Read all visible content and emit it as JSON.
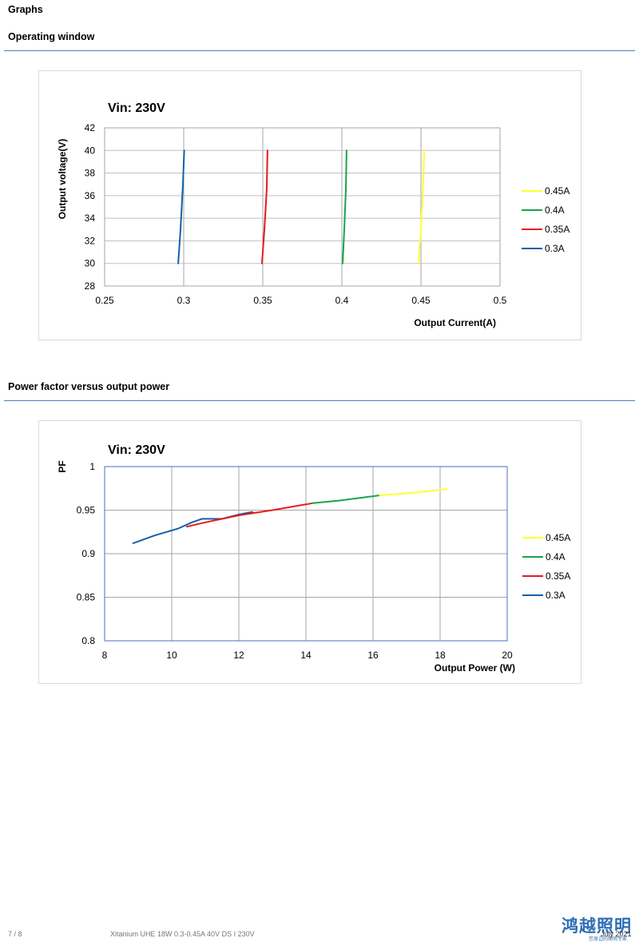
{
  "headings": {
    "graphs": "Graphs",
    "operating_window": "Operating window",
    "power_factor": "Power factor versus output power"
  },
  "footer": {
    "page": "7 / 8",
    "doc_title": "Xitanium UHE 18W 0.3-0.45A 40V DS I 230V",
    "date": "July 2021",
    "logo": "鸿越照明",
    "logo_sub": "您身边的照明专家"
  },
  "colors": {
    "0.45A": "#ffff33",
    "0.4A": "#1aa34a",
    "0.35A": "#e8191d",
    "0.3A": "#1460a8",
    "plot_border_pf": "#4472c4"
  },
  "chart_data": [
    {
      "type": "line",
      "title": "Vin: 230V",
      "xlabel": "Output Current(A)",
      "ylabel": "Output voltage(V)",
      "xlim": [
        0.25,
        0.5
      ],
      "ylim": [
        28,
        42
      ],
      "x_ticks": [
        "0.25",
        "0.3",
        "0.35",
        "0.4",
        "0.45",
        "0.5"
      ],
      "y_ticks": [
        "28",
        "30",
        "32",
        "34",
        "36",
        "38",
        "40",
        "42"
      ],
      "grid": "vertical",
      "legend_placement": "right",
      "legend": [
        "0.45A",
        "0.4A",
        "0.35A",
        "0.3A"
      ],
      "series": [
        {
          "name": "0.3A",
          "points": [
            [
              0.2965,
              30
            ],
            [
              0.298,
              33
            ],
            [
              0.2995,
              37
            ],
            [
              0.3003,
              40
            ]
          ]
        },
        {
          "name": "0.35A",
          "points": [
            [
              0.3495,
              30
            ],
            [
              0.351,
              33
            ],
            [
              0.3525,
              36.5
            ],
            [
              0.353,
              40
            ]
          ]
        },
        {
          "name": "0.4A",
          "points": [
            [
              0.4005,
              30
            ],
            [
              0.4015,
              33
            ],
            [
              0.4025,
              36.5
            ],
            [
              0.403,
              40
            ]
          ]
        },
        {
          "name": "0.45A",
          "points": [
            [
              0.4485,
              30
            ],
            [
              0.45,
              33
            ],
            [
              0.4512,
              36.5
            ],
            [
              0.4522,
              40
            ]
          ]
        }
      ]
    },
    {
      "type": "line",
      "title": "Vin: 230V",
      "xlabel": "Output Power (W)",
      "ylabel": "PF",
      "xlim": [
        8,
        20
      ],
      "ylim": [
        0.8,
        1
      ],
      "x_ticks": [
        "8",
        "10",
        "12",
        "14",
        "16",
        "18",
        "20"
      ],
      "y_ticks": [
        "0.8",
        "0.85",
        "0.9",
        "0.95",
        "1"
      ],
      "grid": "both",
      "legend_placement": "right",
      "legend": [
        "0.45A",
        "0.4A",
        "0.35A",
        "0.3A"
      ],
      "series": [
        {
          "name": "0.3A",
          "points": [
            [
              8.85,
              0.912
            ],
            [
              9.5,
              0.921
            ],
            [
              10.2,
              0.929
            ],
            [
              10.6,
              0.936
            ],
            [
              10.9,
              0.94
            ],
            [
              11.2,
              0.94
            ],
            [
              11.5,
              0.94
            ],
            [
              12.0,
              0.945
            ],
            [
              12.4,
              0.948
            ]
          ]
        },
        {
          "name": "0.35A",
          "points": [
            [
              10.45,
              0.931
            ],
            [
              11.0,
              0.936
            ],
            [
              12.0,
              0.944
            ],
            [
              13.0,
              0.95
            ],
            [
              14.2,
              0.958
            ]
          ]
        },
        {
          "name": "0.4A",
          "points": [
            [
              14.2,
              0.958
            ],
            [
              15.0,
              0.961
            ],
            [
              16.2,
              0.967
            ]
          ]
        },
        {
          "name": "0.45A",
          "points": [
            [
              16.2,
              0.967
            ],
            [
              17.2,
              0.97
            ],
            [
              18.2,
              0.974
            ]
          ]
        }
      ]
    }
  ]
}
